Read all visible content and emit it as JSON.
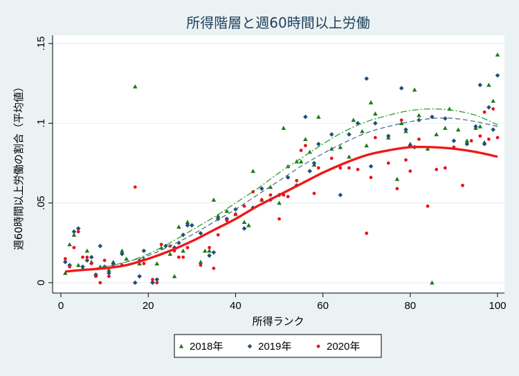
{
  "chart_data": {
    "type": "scatter",
    "title": "所得階層と週60時間以上労働",
    "xlabel": "所得ランク",
    "ylabel": "週60時間以上労働の割合（平均値）",
    "xlim": [
      0,
      100
    ],
    "ylim": [
      0,
      0.15
    ],
    "x_ticks": [
      "0",
      "20",
      "40",
      "60",
      "80",
      "100"
    ],
    "y_ticks": [
      "0",
      ".05",
      ".1",
      ".15"
    ],
    "grid": "horizontal",
    "legend_position": "bottom",
    "series": [
      {
        "name": "2018年",
        "marker": "triangle",
        "color": "#1a7a1a",
        "points": [
          [
            1,
            0.006
          ],
          [
            2,
            0.024
          ],
          [
            3,
            0.03
          ],
          [
            4,
            0.011
          ],
          [
            5,
            0.009
          ],
          [
            6,
            0.02
          ],
          [
            7,
            0.013
          ],
          [
            8,
            0.005
          ],
          [
            9,
            0.01
          ],
          [
            10,
            0.01
          ],
          [
            11,
            0.008
          ],
          [
            12,
            0.013
          ],
          [
            14,
            0.02
          ],
          [
            15,
            0.015
          ],
          [
            17,
            0.123
          ],
          [
            18,
            0.012
          ],
          [
            19,
            0.015
          ],
          [
            21,
            0.001
          ],
          [
            22,
            0.012
          ],
          [
            23,
            0.022
          ],
          [
            25,
            0.018
          ],
          [
            26,
            0.004
          ],
          [
            27,
            0.035
          ],
          [
            28,
            0.02
          ],
          [
            29,
            0.038
          ],
          [
            32,
            0.013
          ],
          [
            33,
            0.02
          ],
          [
            34,
            0.02
          ],
          [
            35,
            0.052
          ],
          [
            36,
            0.042
          ],
          [
            38,
            0.045
          ],
          [
            40,
            0.043
          ],
          [
            42,
            0.038
          ],
          [
            43,
            0.036
          ],
          [
            44,
            0.07
          ],
          [
            46,
            0.052
          ],
          [
            48,
            0.06
          ],
          [
            50,
            0.05
          ],
          [
            51,
            0.097
          ],
          [
            52,
            0.073
          ],
          [
            54,
            0.076
          ],
          [
            55,
            0.076
          ],
          [
            56,
            0.09
          ],
          [
            57,
            0.082
          ],
          [
            58,
            0.074
          ],
          [
            59,
            0.104
          ],
          [
            62,
            0.084
          ],
          [
            64,
            0.085
          ],
          [
            66,
            0.079
          ],
          [
            67,
            0.102
          ],
          [
            69,
            0.095
          ],
          [
            70,
            0.086
          ],
          [
            71,
            0.113
          ],
          [
            72,
            0.106
          ],
          [
            75,
            0.091
          ],
          [
            77,
            0.065
          ],
          [
            78,
            0.1
          ],
          [
            79,
            0.095
          ],
          [
            80,
            0.087
          ],
          [
            81,
            0.121
          ],
          [
            82,
            0.105
          ],
          [
            84,
            0.084
          ],
          [
            85,
            0.0
          ],
          [
            86,
            0.093
          ],
          [
            88,
            0.097
          ],
          [
            89,
            0.109
          ],
          [
            91,
            0.096
          ],
          [
            93,
            0.089
          ],
          [
            95,
            0.097
          ],
          [
            96,
            0.098
          ],
          [
            97,
            0.088
          ],
          [
            98,
            0.124
          ],
          [
            99,
            0.114
          ],
          [
            100,
            0.143
          ]
        ]
      },
      {
        "name": "2019年",
        "marker": "diamond",
        "color": "#1f4e79",
        "points": [
          [
            1,
            0.013
          ],
          [
            2,
            0.011
          ],
          [
            3,
            0.032
          ],
          [
            4,
            0.034
          ],
          [
            5,
            0.01
          ],
          [
            6,
            0.014
          ],
          [
            7,
            0.016
          ],
          [
            8,
            0.005
          ],
          [
            9,
            0.023
          ],
          [
            10,
            0.01
          ],
          [
            11,
            0.006
          ],
          [
            12,
            0.012
          ],
          [
            14,
            0.018
          ],
          [
            17,
            0.0
          ],
          [
            18,
            0.004
          ],
          [
            19,
            0.02
          ],
          [
            21,
            0.0
          ],
          [
            22,
            0.002
          ],
          [
            24,
            0.023
          ],
          [
            26,
            0.022
          ],
          [
            27,
            0.025
          ],
          [
            28,
            0.03
          ],
          [
            29,
            0.036
          ],
          [
            30,
            0.036
          ],
          [
            32,
            0.031
          ],
          [
            34,
            0.017
          ],
          [
            35,
            0.019
          ],
          [
            36,
            0.04
          ],
          [
            38,
            0.04
          ],
          [
            40,
            0.046
          ],
          [
            42,
            0.034
          ],
          [
            44,
            0.047
          ],
          [
            46,
            0.059
          ],
          [
            48,
            0.052
          ],
          [
            50,
            0.055
          ],
          [
            52,
            0.066
          ],
          [
            54,
            0.061
          ],
          [
            56,
            0.104
          ],
          [
            57,
            0.07
          ],
          [
            58,
            0.075
          ],
          [
            59,
            0.087
          ],
          [
            62,
            0.093
          ],
          [
            64,
            0.055
          ],
          [
            66,
            0.093
          ],
          [
            68,
            0.1
          ],
          [
            70,
            0.128
          ],
          [
            71,
            0.073
          ],
          [
            72,
            0.1
          ],
          [
            75,
            0.092
          ],
          [
            78,
            0.122
          ],
          [
            79,
            0.096
          ],
          [
            80,
            0.086
          ],
          [
            81,
            0.085
          ],
          [
            82,
            0.102
          ],
          [
            85,
            0.104
          ],
          [
            88,
            0.103
          ],
          [
            90,
            0.089
          ],
          [
            93,
            0.087
          ],
          [
            95,
            0.098
          ],
          [
            96,
            0.124
          ],
          [
            97,
            0.087
          ],
          [
            98,
            0.11
          ],
          [
            99,
            0.096
          ],
          [
            100,
            0.13
          ]
        ]
      },
      {
        "name": "2020年",
        "marker": "dot",
        "color": "#e8141b",
        "points": [
          [
            1,
            0.015
          ],
          [
            2,
            0.01
          ],
          [
            3,
            0.022
          ],
          [
            4,
            0.032
          ],
          [
            5,
            0.016
          ],
          [
            6,
            0.016
          ],
          [
            7,
            0.012
          ],
          [
            8,
            0.004
          ],
          [
            9,
            0.0
          ],
          [
            10,
            0.014
          ],
          [
            11,
            0.004
          ],
          [
            12,
            0.01
          ],
          [
            14,
            0.011
          ],
          [
            17,
            0.06
          ],
          [
            18,
            0.014
          ],
          [
            19,
            0.012
          ],
          [
            21,
            0.002
          ],
          [
            22,
            0.0
          ],
          [
            23,
            0.024
          ],
          [
            25,
            0.023
          ],
          [
            26,
            0.02
          ],
          [
            27,
            0.016
          ],
          [
            28,
            0.016
          ],
          [
            29,
            0.022
          ],
          [
            32,
            0.011
          ],
          [
            34,
            0.022
          ],
          [
            35,
            0.009
          ],
          [
            36,
            0.03
          ],
          [
            38,
            0.039
          ],
          [
            40,
            0.043
          ],
          [
            42,
            0.048
          ],
          [
            44,
            0.057
          ],
          [
            46,
            0.052
          ],
          [
            48,
            0.055
          ],
          [
            50,
            0.04
          ],
          [
            51,
            0.055
          ],
          [
            52,
            0.054
          ],
          [
            54,
            0.064
          ],
          [
            55,
            0.083
          ],
          [
            56,
            0.086
          ],
          [
            58,
            0.056
          ],
          [
            59,
            0.072
          ],
          [
            62,
            0.078
          ],
          [
            64,
            0.072
          ],
          [
            66,
            0.072
          ],
          [
            68,
            0.071
          ],
          [
            70,
            0.031
          ],
          [
            71,
            0.066
          ],
          [
            72,
            0.091
          ],
          [
            75,
            0.075
          ],
          [
            77,
            0.059
          ],
          [
            78,
            0.102
          ],
          [
            79,
            0.077
          ],
          [
            80,
            0.07
          ],
          [
            82,
            0.09
          ],
          [
            84,
            0.048
          ],
          [
            86,
            0.071
          ],
          [
            88,
            0.072
          ],
          [
            90,
            0.085
          ],
          [
            92,
            0.061
          ],
          [
            94,
            0.089
          ],
          [
            96,
            0.092
          ],
          [
            97,
            0.107
          ],
          [
            98,
            0.09
          ],
          [
            99,
            0.109
          ],
          [
            100,
            0.091
          ]
        ]
      }
    ],
    "fit_lines": [
      {
        "series": "2018年",
        "style": "dash-dot",
        "color": "#2e9c2e",
        "x": [
          1,
          5,
          10,
          15,
          20,
          25,
          30,
          35,
          40,
          45,
          50,
          55,
          60,
          65,
          70,
          75,
          80,
          85,
          90,
          95,
          100
        ],
        "y": [
          0.007,
          0.008,
          0.01,
          0.013,
          0.018,
          0.025,
          0.033,
          0.041,
          0.05,
          0.059,
          0.069,
          0.078,
          0.087,
          0.095,
          0.101,
          0.105,
          0.108,
          0.109,
          0.108,
          0.105,
          0.099
        ]
      },
      {
        "series": "2019年",
        "style": "dashed",
        "color": "#4a6e8f",
        "x": [
          1,
          5,
          10,
          15,
          20,
          25,
          30,
          35,
          40,
          45,
          50,
          55,
          60,
          65,
          70,
          75,
          80,
          85,
          90,
          95,
          100
        ],
        "y": [
          0.007,
          0.008,
          0.01,
          0.013,
          0.017,
          0.023,
          0.03,
          0.038,
          0.046,
          0.055,
          0.064,
          0.073,
          0.081,
          0.088,
          0.094,
          0.098,
          0.101,
          0.103,
          0.103,
          0.101,
          0.098
        ]
      },
      {
        "series": "2020年",
        "style": "solid",
        "color": "#f01818",
        "x": [
          1,
          5,
          10,
          15,
          20,
          25,
          30,
          35,
          40,
          45,
          50,
          55,
          60,
          65,
          70,
          75,
          80,
          85,
          90,
          95,
          100
        ],
        "y": [
          0.007,
          0.008,
          0.009,
          0.011,
          0.015,
          0.02,
          0.026,
          0.033,
          0.04,
          0.048,
          0.055,
          0.062,
          0.069,
          0.075,
          0.08,
          0.083,
          0.085,
          0.085,
          0.084,
          0.082,
          0.079
        ]
      }
    ]
  }
}
